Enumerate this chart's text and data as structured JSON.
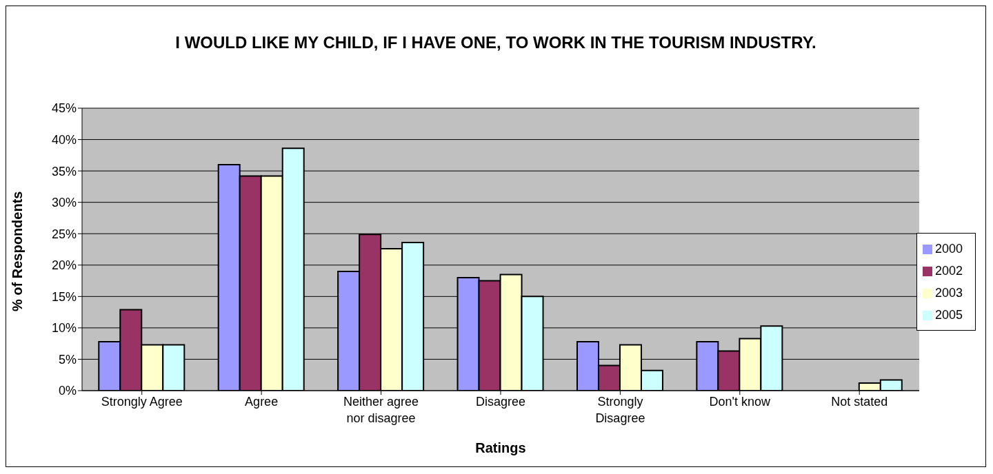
{
  "chart_data": {
    "type": "bar",
    "title": "I WOULD LIKE MY CHILD, IF I HAVE ONE, TO WORK IN THE TOURISM INDUSTRY.",
    "xlabel": "Ratings",
    "ylabel": "% of Respondents",
    "categories": [
      "Strongly Agree",
      "Agree",
      "Neither agree nor disagree",
      "Disagree",
      "Strongly Disagree",
      "Don't know",
      "Not stated"
    ],
    "series": [
      {
        "name": "2000",
        "color": "#9999ff",
        "values": [
          7.8,
          36,
          19,
          18,
          7.8,
          7.8,
          null
        ]
      },
      {
        "name": "2002",
        "color": "#993366",
        "values": [
          12.9,
          34.2,
          24.9,
          17.5,
          4,
          6.3,
          null
        ]
      },
      {
        "name": "2003",
        "color": "#ffffcc",
        "values": [
          7.3,
          34.2,
          22.6,
          18.5,
          7.3,
          8.3,
          1.2
        ]
      },
      {
        "name": "2005",
        "color": "#ccffff",
        "values": [
          7.3,
          38.6,
          23.6,
          15,
          3.2,
          10.3,
          1.7
        ]
      }
    ],
    "ylim": [
      0,
      45
    ],
    "yticks": [
      {
        "value": 0,
        "label": "0%"
      },
      {
        "value": 5,
        "label": "5%"
      },
      {
        "value": 10,
        "label": "10%"
      },
      {
        "value": 15,
        "label": "15%"
      },
      {
        "value": 20,
        "label": "20%"
      },
      {
        "value": 25,
        "label": "25%"
      },
      {
        "value": 30,
        "label": "30%"
      },
      {
        "value": 35,
        "label": "35%"
      },
      {
        "value": 40,
        "label": "40%"
      },
      {
        "value": 45,
        "label": "45%"
      }
    ],
    "grid": "y",
    "legend": "right"
  }
}
